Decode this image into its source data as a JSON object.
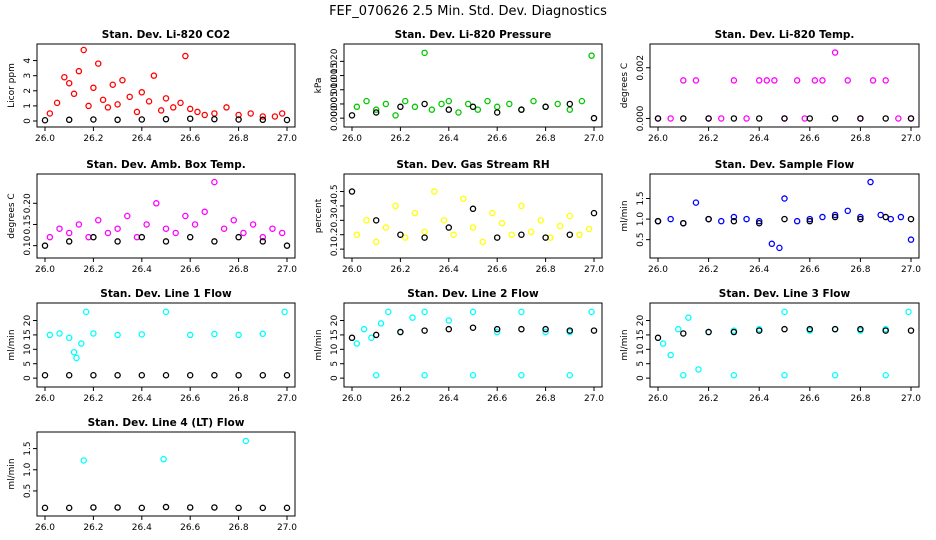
{
  "figure": {
    "title": "FEF_070626  2.5 Min. Std. Dev. Diagnostics",
    "black_color": "#000000"
  },
  "chart_data": [
    {
      "type": "scatter",
      "title": "Stan. Dev. Li-820 CO2",
      "ylabel": "Licor ppm",
      "color": "#ff0000",
      "xlim": [
        26.0,
        27.0
      ],
      "xticks": [
        "26.0",
        "26.2",
        "26.4",
        "26.6",
        "26.8",
        "27.0"
      ],
      "ylim": [
        0,
        4.7
      ],
      "yticks": [
        "0",
        "1",
        "2",
        "3",
        "4"
      ],
      "series": [
        {
          "name": "main",
          "x": [
            26.02,
            26.05,
            26.08,
            26.1,
            26.12,
            26.14,
            26.16,
            26.18,
            26.2,
            26.22,
            26.24,
            26.26,
            26.28,
            26.3,
            26.32,
            26.35,
            26.38,
            26.4,
            26.43,
            26.45,
            26.48,
            26.5,
            26.53,
            26.56,
            26.58,
            26.6,
            26.63,
            26.66,
            26.7,
            26.75,
            26.8,
            26.85,
            26.9,
            26.95,
            26.98
          ],
          "y": [
            0.5,
            1.2,
            2.9,
            2.5,
            1.8,
            3.3,
            4.7,
            1.0,
            2.2,
            3.8,
            1.4,
            0.9,
            2.4,
            1.1,
            2.7,
            1.6,
            0.6,
            1.9,
            1.3,
            3.0,
            0.7,
            1.5,
            0.9,
            1.2,
            4.3,
            0.8,
            0.6,
            0.4,
            0.5,
            0.9,
            0.4,
            0.5,
            0.3,
            0.3,
            0.5
          ]
        },
        {
          "name": "baseline",
          "x": [
            26.0,
            26.1,
            26.2,
            26.3,
            26.4,
            26.5,
            26.6,
            26.7,
            26.8,
            26.9,
            27.0
          ],
          "y": [
            0.05,
            0.08,
            0.1,
            0.08,
            0.1,
            0.12,
            0.15,
            0.12,
            0.1,
            0.08,
            0.07
          ],
          "color": "#000000"
        }
      ]
    },
    {
      "type": "scatter",
      "title": "Stan. Dev. Li-820 Pressure",
      "ylabel": "kPa",
      "color": "#00c800",
      "xlim": [
        26.0,
        27.0
      ],
      "xticks": [
        "26.0",
        "26.2",
        "26.4",
        "26.6",
        "26.8",
        "27.0"
      ],
      "ylim": [
        -0.001,
        0.024
      ],
      "yticks": [
        "0.000",
        "0.005",
        "0.010",
        "0.015",
        "0.020"
      ],
      "series": [
        {
          "name": "main",
          "x": [
            26.02,
            26.06,
            26.1,
            26.14,
            26.18,
            26.22,
            26.26,
            26.3,
            26.33,
            26.37,
            26.4,
            26.44,
            26.48,
            26.52,
            26.56,
            26.6,
            26.65,
            26.7,
            26.75,
            26.8,
            26.85,
            26.9,
            26.95,
            26.99
          ],
          "y": [
            0.004,
            0.006,
            0.003,
            0.005,
            0.001,
            0.006,
            0.004,
            0.023,
            0.003,
            0.005,
            0.006,
            0.002,
            0.005,
            0.003,
            0.006,
            0.004,
            0.005,
            0.003,
            0.006,
            0.004,
            0.005,
            0.003,
            0.006,
            0.022
          ]
        },
        {
          "name": "baseline",
          "x": [
            26.0,
            26.1,
            26.2,
            26.3,
            26.4,
            26.5,
            26.6,
            26.7,
            26.8,
            26.9,
            27.0
          ],
          "y": [
            0.001,
            0.002,
            0.004,
            0.005,
            0.003,
            0.004,
            0.002,
            0.003,
            0.004,
            0.005,
            0.0
          ],
          "color": "#000000"
        }
      ]
    },
    {
      "type": "scatter",
      "title": "Stan. Dev. Li-820 Temp.",
      "ylabel": "degrees C",
      "color": "#ff00ff",
      "xlim": [
        26.0,
        27.0
      ],
      "xticks": [
        "26.0",
        "26.2",
        "26.4",
        "26.6",
        "26.8",
        "27.0"
      ],
      "ylim": [
        -0.0001,
        0.0027
      ],
      "yticks": [
        "0.000",
        "0.002"
      ],
      "series": [
        {
          "name": "main",
          "x": [
            26.0,
            26.05,
            26.1,
            26.15,
            26.2,
            26.25,
            26.3,
            26.35,
            26.4,
            26.43,
            26.46,
            26.5,
            26.55,
            26.58,
            26.62,
            26.65,
            26.7,
            26.75,
            26.8,
            26.85,
            26.9,
            26.95,
            27.0
          ],
          "y": [
            0.0,
            0.0,
            0.0015,
            0.0015,
            0.0,
            0.0,
            0.0015,
            0.0,
            0.0015,
            0.0015,
            0.0015,
            0.0,
            0.0015,
            0.0,
            0.0015,
            0.0015,
            0.0026,
            0.0015,
            0.0,
            0.0015,
            0.0015,
            0.0,
            0.0
          ]
        },
        {
          "name": "baseline",
          "x": [
            26.0,
            26.1,
            26.2,
            26.3,
            26.4,
            26.5,
            26.6,
            26.7,
            26.8,
            26.9,
            27.0
          ],
          "y": [
            0,
            0,
            0,
            0,
            0,
            0,
            0,
            0,
            0,
            0,
            0
          ],
          "color": "#000000"
        }
      ]
    },
    {
      "type": "scatter",
      "title": "Stan. Dev. Amb. Box Temp.",
      "ylabel": "degrees C",
      "color": "#ff00ff",
      "xlim": [
        26.0,
        27.0
      ],
      "xticks": [
        "26.0",
        "26.2",
        "26.4",
        "26.6",
        "26.8",
        "27.0"
      ],
      "ylim": [
        0.085,
        0.255
      ],
      "yticks": [
        "0.10",
        "0.15",
        "0.20"
      ],
      "series": [
        {
          "name": "main",
          "x": [
            26.02,
            26.06,
            26.1,
            26.14,
            26.18,
            26.22,
            26.26,
            26.3,
            26.34,
            26.38,
            26.42,
            26.46,
            26.5,
            26.54,
            26.58,
            26.62,
            26.66,
            26.7,
            26.74,
            26.78,
            26.82,
            26.86,
            26.9,
            26.94,
            26.98
          ],
          "y": [
            0.12,
            0.14,
            0.13,
            0.15,
            0.12,
            0.16,
            0.13,
            0.14,
            0.17,
            0.12,
            0.15,
            0.2,
            0.14,
            0.13,
            0.17,
            0.15,
            0.18,
            0.25,
            0.14,
            0.16,
            0.13,
            0.15,
            0.12,
            0.14,
            0.13
          ]
        },
        {
          "name": "baseline",
          "x": [
            26.0,
            26.1,
            26.2,
            26.3,
            26.4,
            26.5,
            26.6,
            26.7,
            26.8,
            26.9,
            27.0
          ],
          "y": [
            0.1,
            0.11,
            0.12,
            0.11,
            0.12,
            0.11,
            0.12,
            0.11,
            0.12,
            0.11,
            0.1
          ],
          "color": "#000000"
        }
      ]
    },
    {
      "type": "scatter",
      "title": "Stan. Dev. Gas Stream RH",
      "ylabel": "percent",
      "color": "#ffff00",
      "xlim": [
        26.0,
        27.0
      ],
      "xticks": [
        "26.0",
        "26.2",
        "26.4",
        "26.6",
        "26.8",
        "27.0"
      ],
      "ylim": [
        0.08,
        0.58
      ],
      "yticks": [
        "0.1",
        "0.2",
        "0.3",
        "0.4",
        "0.5"
      ],
      "series": [
        {
          "name": "main",
          "x": [
            26.02,
            26.06,
            26.1,
            26.14,
            26.18,
            26.22,
            26.26,
            26.3,
            26.34,
            26.38,
            26.42,
            26.46,
            26.5,
            26.54,
            26.58,
            26.62,
            26.66,
            26.7,
            26.74,
            26.78,
            26.82,
            26.86,
            26.9,
            26.94,
            26.98
          ],
          "y": [
            0.2,
            0.3,
            0.15,
            0.25,
            0.4,
            0.18,
            0.35,
            0.22,
            0.5,
            0.3,
            0.2,
            0.45,
            0.25,
            0.15,
            0.35,
            0.28,
            0.2,
            0.4,
            0.22,
            0.3,
            0.18,
            0.26,
            0.33,
            0.2,
            0.24
          ]
        },
        {
          "name": "baseline",
          "x": [
            26.0,
            26.1,
            26.2,
            26.3,
            26.4,
            26.5,
            26.6,
            26.7,
            26.8,
            26.9,
            27.0
          ],
          "y": [
            0.5,
            0.3,
            0.2,
            0.18,
            0.25,
            0.38,
            0.18,
            0.2,
            0.18,
            0.2,
            0.35
          ],
          "color": "#000000"
        }
      ]
    },
    {
      "type": "scatter",
      "title": "Stan. Dev. Sample Flow",
      "ylabel": "ml/min",
      "color": "#0000ff",
      "xlim": [
        26.0,
        27.0
      ],
      "xticks": [
        "26.0",
        "26.2",
        "26.4",
        "26.6",
        "26.8",
        "27.0"
      ],
      "ylim": [
        0.2,
        1.95
      ],
      "yticks": [
        "0.5",
        "1.0",
        "1.5"
      ],
      "series": [
        {
          "name": "main",
          "x": [
            26.0,
            26.05,
            26.1,
            26.15,
            26.2,
            26.25,
            26.3,
            26.35,
            26.4,
            26.45,
            26.48,
            26.5,
            26.55,
            26.6,
            26.65,
            26.7,
            26.75,
            26.8,
            26.84,
            26.88,
            26.92,
            26.96,
            27.0
          ],
          "y": [
            0.95,
            1.0,
            0.9,
            1.4,
            1.0,
            0.95,
            1.05,
            1.0,
            0.95,
            0.4,
            0.3,
            1.5,
            0.95,
            1.0,
            1.05,
            1.1,
            1.2,
            1.05,
            1.9,
            1.1,
            1.0,
            1.05,
            0.5
          ]
        },
        {
          "name": "baseline",
          "x": [
            26.0,
            26.1,
            26.2,
            26.3,
            26.4,
            26.5,
            26.6,
            26.7,
            26.8,
            26.9,
            27.0
          ],
          "y": [
            0.95,
            0.9,
            1.0,
            0.95,
            0.9,
            1.0,
            0.95,
            1.05,
            1.0,
            1.05,
            1.0
          ],
          "color": "#000000"
        }
      ]
    },
    {
      "type": "scatter",
      "title": "Stan. Dev. Line 1 Flow",
      "ylabel": "ml/min",
      "color": "#00ffff",
      "xlim": [
        26.0,
        27.0
      ],
      "xticks": [
        "26.0",
        "26.2",
        "26.4",
        "26.6",
        "26.8",
        "27.0"
      ],
      "ylim": [
        -1,
        24
      ],
      "yticks": [
        "0",
        "5",
        "10",
        "15",
        "20"
      ],
      "series": [
        {
          "name": "main",
          "x": [
            26.02,
            26.06,
            26.1,
            26.12,
            26.13,
            26.15,
            26.17,
            26.2,
            26.3,
            26.4,
            26.5,
            26.6,
            26.7,
            26.8,
            26.9,
            26.99
          ],
          "y": [
            15,
            15.5,
            14,
            9,
            7,
            12,
            23,
            15.5,
            15,
            15.2,
            23,
            15,
            15.3,
            15,
            15.4,
            23
          ]
        },
        {
          "name": "baseline",
          "x": [
            26.0,
            26.1,
            26.2,
            26.3,
            26.4,
            26.5,
            26.6,
            26.7,
            26.8,
            26.9,
            27.0
          ],
          "y": [
            1,
            1,
            1,
            1,
            1,
            1,
            1,
            1,
            1,
            1,
            1
          ],
          "color": "#000000"
        }
      ]
    },
    {
      "type": "scatter",
      "title": "Stan. Dev. Line 2 Flow",
      "ylabel": "ml/min",
      "color": "#00ffff",
      "xlim": [
        26.0,
        27.0
      ],
      "xticks": [
        "26.0",
        "26.2",
        "26.4",
        "26.6",
        "26.8",
        "27.0"
      ],
      "ylim": [
        -1,
        24
      ],
      "yticks": [
        "0",
        "5",
        "10",
        "15",
        "20"
      ],
      "series": [
        {
          "name": "main",
          "x": [
            26.02,
            26.05,
            26.08,
            26.12,
            26.15,
            26.2,
            26.25,
            26.3,
            26.4,
            26.5,
            26.6,
            26.7,
            26.8,
            26.9,
            26.99,
            26.1,
            26.3,
            26.5,
            26.7,
            26.9
          ],
          "y": [
            12,
            17,
            14,
            19,
            23,
            16,
            21,
            23,
            20,
            23,
            16,
            23,
            16,
            16,
            23,
            1,
            1,
            1,
            1,
            1
          ]
        },
        {
          "name": "baseline",
          "x": [
            26.0,
            26.1,
            26.2,
            26.3,
            26.4,
            26.5,
            26.6,
            26.7,
            26.8,
            26.9,
            27.0
          ],
          "y": [
            14,
            15,
            16,
            16.5,
            17,
            17.5,
            17,
            17,
            17,
            16.5,
            16.5
          ],
          "color": "#000000"
        }
      ]
    },
    {
      "type": "scatter",
      "title": "Stan. Dev. Line 3 Flow",
      "ylabel": "ml/min",
      "color": "#00ffff",
      "xlim": [
        26.0,
        27.0
      ],
      "xticks": [
        "26.0",
        "26.2",
        "26.4",
        "26.6",
        "26.8",
        "27.0"
      ],
      "ylim": [
        -1,
        24
      ],
      "yticks": [
        "0",
        "5",
        "10",
        "15",
        "20"
      ],
      "series": [
        {
          "name": "main",
          "x": [
            26.02,
            26.05,
            26.08,
            26.12,
            26.16,
            26.2,
            26.3,
            26.4,
            26.5,
            26.6,
            26.7,
            26.8,
            26.9,
            26.99,
            26.1,
            26.3,
            26.5,
            26.7,
            26.9
          ],
          "y": [
            12,
            8,
            17,
            21,
            3,
            16,
            16.5,
            17,
            23,
            16.5,
            17,
            16.5,
            17,
            23,
            1,
            1,
            1,
            1,
            1
          ]
        },
        {
          "name": "baseline",
          "x": [
            26.0,
            26.1,
            26.2,
            26.3,
            26.4,
            26.5,
            26.6,
            26.7,
            26.8,
            26.9,
            27.0
          ],
          "y": [
            14,
            15.5,
            16,
            16,
            16.5,
            17,
            17,
            17,
            17,
            16.5,
            16.5
          ],
          "color": "#000000"
        }
      ]
    },
    {
      "type": "scatter",
      "title": "Stan. Dev. Line 4 (LT) Flow",
      "ylabel": "ml/min",
      "color": "#00ffff",
      "xlim": [
        26.0,
        27.0
      ],
      "xticks": [
        "26.0",
        "26.2",
        "26.4",
        "26.6",
        "26.8",
        "27.0"
      ],
      "ylim": [
        0.05,
        1.75
      ],
      "yticks": [
        "0.5",
        "1.0",
        "1.5"
      ],
      "series": [
        {
          "name": "main",
          "x": [
            26.16,
            26.49,
            26.83
          ],
          "y": [
            1.22,
            1.25,
            1.68
          ]
        },
        {
          "name": "baseline",
          "x": [
            26.0,
            26.1,
            26.2,
            26.3,
            26.4,
            26.5,
            26.6,
            26.7,
            26.8,
            26.9,
            27.0
          ],
          "y": [
            0.1,
            0.1,
            0.11,
            0.11,
            0.1,
            0.12,
            0.11,
            0.11,
            0.1,
            0.1,
            0.1
          ],
          "color": "#000000"
        }
      ]
    }
  ]
}
